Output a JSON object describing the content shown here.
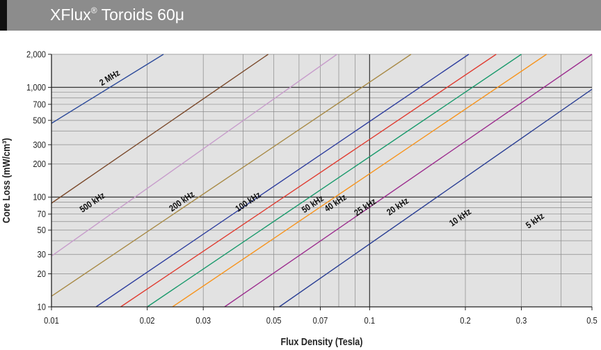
{
  "header": {
    "title_main": "XFlux",
    "title_mark": "®",
    "title_rest": " Toroids 60μ"
  },
  "chart_data": {
    "type": "line",
    "xscale": "log",
    "yscale": "log",
    "xlabel": "Flux Density (Tesla)",
    "ylabel": "Core Loss (mW/cm³)",
    "xlim": [
      0.01,
      0.5
    ],
    "ylim": [
      10,
      2000
    ],
    "xticks": [
      {
        "value": 0.01,
        "label": "0.01"
      },
      {
        "value": 0.02,
        "label": "0.02"
      },
      {
        "value": 0.03,
        "label": "0.03"
      },
      {
        "value": 0.05,
        "label": "0.05"
      },
      {
        "value": 0.07,
        "label": "0.07"
      },
      {
        "value": 0.1,
        "label": "0.1"
      },
      {
        "value": 0.2,
        "label": "0.2"
      },
      {
        "value": 0.3,
        "label": "0.3"
      },
      {
        "value": 0.5,
        "label": "0.5"
      }
    ],
    "yticks": [
      {
        "value": 10,
        "label": "10"
      },
      {
        "value": 20,
        "label": "20"
      },
      {
        "value": 30,
        "label": "30"
      },
      {
        "value": 50,
        "label": "50"
      },
      {
        "value": 70,
        "label": "70"
      },
      {
        "value": 100,
        "label": "100"
      },
      {
        "value": 200,
        "label": "200"
      },
      {
        "value": 300,
        "label": "300"
      },
      {
        "value": 500,
        "label": "500"
      },
      {
        "value": 700,
        "label": "700"
      },
      {
        "value": 1000,
        "label": "1,000"
      },
      {
        "value": 2000,
        "label": "2,000"
      }
    ],
    "grid": true,
    "colors": {
      "plot_bg": "#e2e2e2",
      "grid": "#8a8a8a",
      "header": "#8c8c8c"
    },
    "series": [
      {
        "name": "5 kHz",
        "color": "#2a3f94",
        "points": [
          [
            0.052,
            10
          ],
          [
            0.5,
            960
          ]
        ],
        "label_at": [
          0.335,
          58
        ]
      },
      {
        "name": "10 kHz",
        "color": "#9c2d8e",
        "points": [
          [
            0.035,
            10
          ],
          [
            0.5,
            2000
          ]
        ],
        "label_at": [
          0.195,
          62
        ]
      },
      {
        "name": "20 kHz",
        "color": "#f7941d",
        "points": [
          [
            0.024,
            10
          ],
          [
            0.36,
            2000
          ]
        ],
        "label_at": [
          0.124,
          78
        ]
      },
      {
        "name": "25 kHz",
        "color": "#1a9a6c",
        "points": [
          [
            0.02,
            10
          ],
          [
            0.3,
            2000
          ]
        ],
        "label_at": [
          0.098,
          77
        ]
      },
      {
        "name": "40 kHz",
        "color": "#e03c31",
        "points": [
          [
            0.0165,
            10
          ],
          [
            0.25,
            2000
          ]
        ],
        "label_at": [
          0.079,
          84
        ]
      },
      {
        "name": "50 kHz",
        "color": "#2e3e9e",
        "points": [
          [
            0.0138,
            10
          ],
          [
            0.205,
            2000
          ]
        ],
        "label_at": [
          0.067,
          82
        ]
      },
      {
        "name": "100 kHz",
        "color": "#a88a46",
        "points": [
          [
            0.01,
            12.5
          ],
          [
            0.135,
            2000
          ]
        ],
        "label_at": [
          0.042,
          86
        ]
      },
      {
        "name": "200 kHz",
        "color": "#c79ccb",
        "points": [
          [
            0.01,
            29
          ],
          [
            0.079,
            2000
          ]
        ],
        "label_at": [
          0.026,
          87
        ]
      },
      {
        "name": "500 kHz",
        "color": "#7b4a2c",
        "points": [
          [
            0.01,
            88
          ],
          [
            0.048,
            2000
          ]
        ],
        "label_at": [
          0.0136,
          85
        ]
      },
      {
        "name": "2 MHz",
        "color": "#2c4a9a",
        "points": [
          [
            0.01,
            470
          ],
          [
            0.0225,
            2000
          ]
        ],
        "label_at": [
          0.0154,
          1160
        ]
      }
    ]
  }
}
